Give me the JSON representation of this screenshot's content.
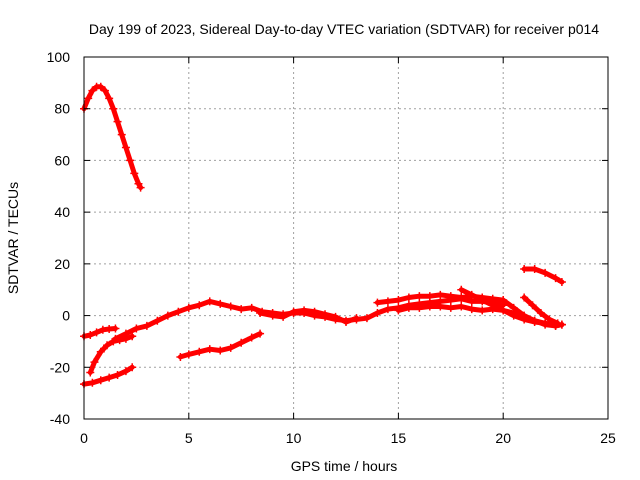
{
  "chart_data": {
    "type": "scatter",
    "title": "Day 199 of 2023, Sidereal Day-to-day VTEC variation (SDTVAR) for receiver p014",
    "xlabel": "GPS time / hours",
    "ylabel": "SDTVAR / TECUs",
    "xlim": [
      0,
      25
    ],
    "ylim": [
      -40,
      100
    ],
    "xticks": [
      0,
      5,
      10,
      15,
      20,
      25
    ],
    "yticks": [
      -40,
      -20,
      0,
      20,
      40,
      60,
      80,
      100
    ],
    "grid": true,
    "marker_color": "#ff0000",
    "series": [
      {
        "name": "arc-high",
        "points": [
          [
            0.0,
            80
          ],
          [
            0.2,
            84
          ],
          [
            0.4,
            87
          ],
          [
            0.6,
            88.5
          ],
          [
            0.8,
            88.5
          ],
          [
            1.0,
            87
          ],
          [
            1.2,
            84
          ],
          [
            1.4,
            80
          ],
          [
            1.6,
            75
          ],
          [
            1.8,
            70
          ],
          [
            2.0,
            65
          ],
          [
            2.2,
            60
          ],
          [
            2.4,
            55
          ],
          [
            2.6,
            51
          ],
          [
            2.7,
            49.5
          ]
        ]
      },
      {
        "name": "arc-low",
        "points": [
          [
            0.0,
            -26.5
          ],
          [
            0.4,
            -26
          ],
          [
            0.8,
            -25
          ],
          [
            1.2,
            -24
          ],
          [
            1.6,
            -23
          ],
          [
            2.0,
            -21.5
          ],
          [
            2.3,
            -20
          ]
        ]
      },
      {
        "name": "arc-rise",
        "points": [
          [
            0.3,
            -22
          ],
          [
            0.5,
            -18
          ],
          [
            0.8,
            -14
          ],
          [
            1.1,
            -11.5
          ],
          [
            1.4,
            -10
          ],
          [
            1.7,
            -9.5
          ],
          [
            2.0,
            -9
          ],
          [
            2.3,
            -8
          ]
        ]
      },
      {
        "name": "arc-early",
        "points": [
          [
            0.0,
            -8
          ],
          [
            0.3,
            -7.5
          ],
          [
            0.6,
            -6.5
          ],
          [
            0.9,
            -5.5
          ],
          [
            1.2,
            -5.2
          ],
          [
            1.5,
            -5
          ]
        ]
      },
      {
        "name": "arc-main",
        "points": [
          [
            1.5,
            -9
          ],
          [
            2.0,
            -7
          ],
          [
            2.5,
            -5
          ],
          [
            3.0,
            -4
          ],
          [
            3.5,
            -2
          ],
          [
            4.0,
            0
          ],
          [
            4.5,
            1.5
          ],
          [
            5.0,
            3
          ],
          [
            5.5,
            4
          ],
          [
            6.0,
            5.5
          ],
          [
            6.5,
            4.5
          ],
          [
            7.0,
            3.5
          ],
          [
            7.5,
            2.5
          ],
          [
            8.0,
            3
          ],
          [
            8.5,
            1.5
          ],
          [
            9.0,
            1
          ],
          [
            9.5,
            0.5
          ],
          [
            10.0,
            1
          ],
          [
            10.5,
            1
          ],
          [
            11.0,
            0
          ],
          [
            11.5,
            -0.5
          ],
          [
            12.0,
            -1.5
          ],
          [
            12.5,
            -2
          ],
          [
            13.0,
            -1.5
          ],
          [
            13.5,
            -1
          ],
          [
            14.0,
            1
          ],
          [
            14.5,
            2.5
          ],
          [
            15.0,
            3
          ],
          [
            15.5,
            4
          ],
          [
            16.0,
            4.5
          ],
          [
            16.5,
            5
          ],
          [
            17.0,
            5.5
          ],
          [
            17.5,
            6
          ],
          [
            18.0,
            6.5
          ],
          [
            18.5,
            5.5
          ],
          [
            19.0,
            5.5
          ],
          [
            19.5,
            5
          ],
          [
            20.0,
            4
          ]
        ]
      },
      {
        "name": "arc-mid",
        "points": [
          [
            4.6,
            -16
          ],
          [
            5.0,
            -15
          ],
          [
            5.5,
            -14
          ],
          [
            6.0,
            -13
          ],
          [
            6.5,
            -13.5
          ],
          [
            7.0,
            -12.5
          ],
          [
            7.5,
            -10.5
          ],
          [
            8.0,
            -8.5
          ],
          [
            8.4,
            -7
          ]
        ]
      },
      {
        "name": "arc-mid2",
        "points": [
          [
            8.4,
            1
          ],
          [
            9.0,
            0
          ],
          [
            9.5,
            -0.5
          ],
          [
            10.0,
            1.5
          ],
          [
            10.5,
            2
          ],
          [
            11.0,
            1.5
          ],
          [
            11.5,
            0.5
          ],
          [
            12.0,
            -0.5
          ],
          [
            12.5,
            -2.5
          ],
          [
            13.0,
            -1
          ]
        ]
      },
      {
        "name": "arc-late-1",
        "points": [
          [
            14.0,
            5
          ],
          [
            14.5,
            5.5
          ],
          [
            15.0,
            6
          ],
          [
            15.5,
            7
          ],
          [
            16.0,
            7.5
          ],
          [
            16.5,
            7.5
          ],
          [
            17.0,
            8
          ],
          [
            17.5,
            7.5
          ],
          [
            18.0,
            7
          ],
          [
            18.5,
            7.5
          ],
          [
            19.0,
            7
          ],
          [
            19.5,
            6.5
          ],
          [
            20.0,
            6
          ],
          [
            20.5,
            3
          ],
          [
            21.0,
            0
          ],
          [
            21.5,
            -2
          ],
          [
            22.0,
            -3
          ],
          [
            22.5,
            -4
          ],
          [
            22.8,
            -3.5
          ]
        ]
      },
      {
        "name": "arc-late-2",
        "points": [
          [
            15.0,
            2
          ],
          [
            15.5,
            3
          ],
          [
            16.0,
            3
          ],
          [
            16.5,
            3.5
          ],
          [
            17.0,
            3.5
          ],
          [
            17.5,
            3
          ],
          [
            18.0,
            3.5
          ],
          [
            18.5,
            2.5
          ],
          [
            19.0,
            2
          ],
          [
            19.5,
            2.5
          ],
          [
            20.0,
            2
          ],
          [
            20.5,
            1
          ],
          [
            21.0,
            -0.5
          ],
          [
            21.5,
            -2
          ],
          [
            22.0,
            -3.5
          ],
          [
            22.5,
            -4
          ],
          [
            22.8,
            -3.5
          ]
        ]
      },
      {
        "name": "arc-late-3",
        "points": [
          [
            18.0,
            10
          ],
          [
            18.5,
            8
          ],
          [
            19.0,
            6
          ],
          [
            19.5,
            4
          ],
          [
            20.0,
            2
          ],
          [
            20.5,
            0
          ],
          [
            21.0,
            -1.5
          ],
          [
            21.5,
            -2.5
          ],
          [
            22.0,
            -3
          ],
          [
            22.5,
            -3.5
          ]
        ]
      },
      {
        "name": "arc-late-4",
        "points": [
          [
            21.0,
            7
          ],
          [
            21.4,
            4
          ],
          [
            21.8,
            1
          ],
          [
            22.2,
            -1.5
          ],
          [
            22.6,
            -3
          ]
        ]
      },
      {
        "name": "arc-late-5",
        "points": [
          [
            21.0,
            18
          ],
          [
            21.5,
            18
          ],
          [
            22.0,
            16.5
          ],
          [
            22.5,
            14.5
          ],
          [
            22.8,
            13
          ]
        ]
      }
    ]
  }
}
